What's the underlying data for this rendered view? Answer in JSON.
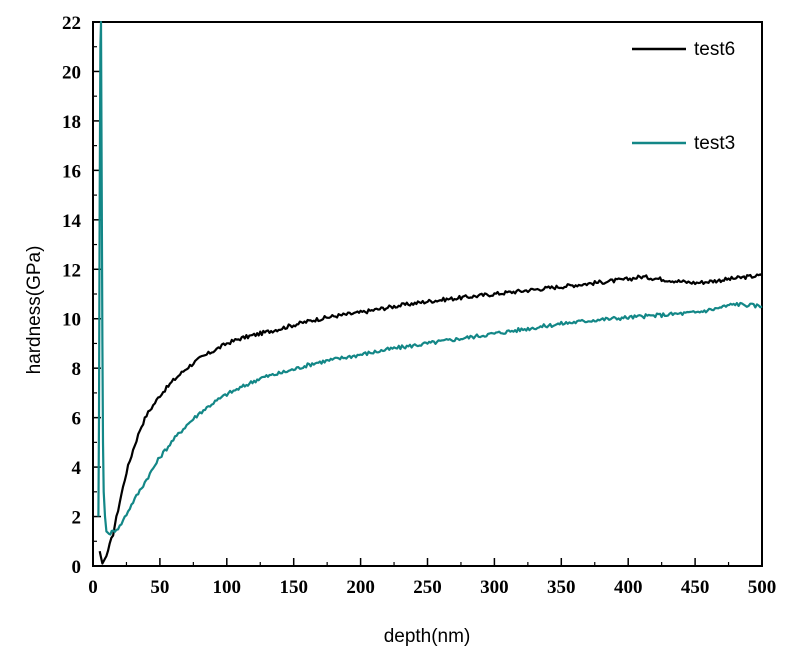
{
  "chart_data": {
    "type": "line",
    "title": "",
    "xlabel": "depth(nm)",
    "ylabel": "hardness(GPa)",
    "xlim": [
      0,
      500
    ],
    "ylim": [
      0,
      22
    ],
    "xticks": [
      0,
      50,
      100,
      150,
      200,
      250,
      300,
      350,
      400,
      450,
      500
    ],
    "yticks": [
      0,
      2,
      4,
      6,
      8,
      10,
      12,
      14,
      16,
      18,
      20,
      22
    ],
    "grid": false,
    "legend_position": "top-right",
    "series": [
      {
        "name": "test6",
        "color": "#000000",
        "points": [
          [
            5,
            0.6
          ],
          [
            7,
            0.1
          ],
          [
            10,
            0.4
          ],
          [
            15,
            1.3
          ],
          [
            20,
            2.6
          ],
          [
            25,
            3.8
          ],
          [
            30,
            4.7
          ],
          [
            35,
            5.5
          ],
          [
            40,
            6.1
          ],
          [
            50,
            6.9
          ],
          [
            60,
            7.5
          ],
          [
            70,
            8.0
          ],
          [
            80,
            8.4
          ],
          [
            90,
            8.7
          ],
          [
            100,
            9.0
          ],
          [
            110,
            9.2
          ],
          [
            125,
            9.4
          ],
          [
            140,
            9.6
          ],
          [
            150,
            9.75
          ],
          [
            165,
            9.95
          ],
          [
            180,
            10.1
          ],
          [
            200,
            10.25
          ],
          [
            225,
            10.5
          ],
          [
            250,
            10.7
          ],
          [
            275,
            10.85
          ],
          [
            300,
            11.0
          ],
          [
            325,
            11.15
          ],
          [
            350,
            11.3
          ],
          [
            375,
            11.45
          ],
          [
            400,
            11.6
          ],
          [
            410,
            11.7
          ],
          [
            425,
            11.6
          ],
          [
            440,
            11.5
          ],
          [
            450,
            11.45
          ],
          [
            460,
            11.5
          ],
          [
            475,
            11.6
          ],
          [
            490,
            11.7
          ],
          [
            500,
            11.75
          ]
        ]
      },
      {
        "name": "test3",
        "color": "#138787",
        "points": [
          [
            4,
            2.0
          ],
          [
            4.5,
            6.0
          ],
          [
            5,
            15.0
          ],
          [
            5.5,
            21.0
          ],
          [
            6,
            22.0
          ],
          [
            6.5,
            15.5
          ],
          [
            7,
            9.0
          ],
          [
            7.5,
            5.0
          ],
          [
            8,
            3.0
          ],
          [
            9,
            2.0
          ],
          [
            10,
            1.4
          ],
          [
            12,
            1.3
          ],
          [
            15,
            1.4
          ],
          [
            20,
            1.6
          ],
          [
            25,
            2.1
          ],
          [
            30,
            2.6
          ],
          [
            40,
            3.5
          ],
          [
            50,
            4.4
          ],
          [
            60,
            5.1
          ],
          [
            70,
            5.7
          ],
          [
            80,
            6.2
          ],
          [
            90,
            6.6
          ],
          [
            100,
            6.95
          ],
          [
            110,
            7.2
          ],
          [
            125,
            7.6
          ],
          [
            140,
            7.8
          ],
          [
            150,
            7.95
          ],
          [
            165,
            8.2
          ],
          [
            180,
            8.35
          ],
          [
            200,
            8.55
          ],
          [
            225,
            8.8
          ],
          [
            250,
            9.0
          ],
          [
            275,
            9.2
          ],
          [
            300,
            9.4
          ],
          [
            325,
            9.6
          ],
          [
            350,
            9.8
          ],
          [
            375,
            9.95
          ],
          [
            400,
            10.05
          ],
          [
            425,
            10.15
          ],
          [
            450,
            10.25
          ],
          [
            465,
            10.4
          ],
          [
            480,
            10.6
          ],
          [
            490,
            10.55
          ],
          [
            500,
            10.5
          ]
        ]
      }
    ]
  }
}
